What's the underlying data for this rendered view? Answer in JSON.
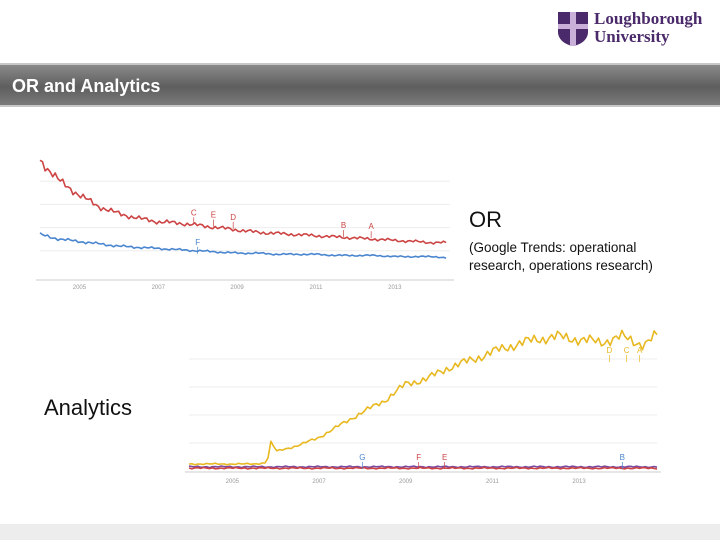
{
  "header": {
    "logo_line1": "Loughborough",
    "logo_line2": "University",
    "slide_title": "OR and Analytics"
  },
  "labels": {
    "or_title": "OR",
    "or_description": "(Google Trends: operational research, operations research)",
    "analytics_title": "Analytics"
  },
  "colors": {
    "red": "#cc4444",
    "blue": "#4a86cf",
    "yellow": "#e8b820",
    "purple": "#7a4aa0",
    "title_bar": "#6e6e6e",
    "logo": "#4a2a6a"
  },
  "chart_data": [
    {
      "type": "line",
      "title": "",
      "x_ticks": [
        "2005",
        "2007",
        "2009",
        "2011",
        "2013"
      ],
      "x": [
        2004.0,
        2004.5,
        2005.0,
        2005.5,
        2006.0,
        2006.5,
        2007.0,
        2007.5,
        2008.0,
        2008.5,
        2009.0,
        2009.5,
        2010.0,
        2010.5,
        2011.0,
        2011.5,
        2012.0,
        2012.5,
        2013.0,
        2013.5,
        2014.0,
        2014.3
      ],
      "xlim": [
        2004.0,
        2014.4
      ],
      "ylim": [
        0,
        100
      ],
      "grid": true,
      "series": [
        {
          "color": "#cc4444",
          "values": [
            98,
            80,
            68,
            58,
            52,
            48,
            45,
            44,
            42,
            40,
            38,
            36,
            35,
            34,
            33,
            32,
            31,
            30,
            29,
            28,
            27,
            27
          ]
        },
        {
          "color": "#4a86cf",
          "values": [
            34,
            30,
            28,
            26,
            24,
            23,
            22,
            21,
            20,
            19,
            18,
            18,
            17,
            17,
            17,
            16,
            16,
            16,
            15,
            15,
            15,
            14
          ]
        }
      ],
      "annotations": [
        {
          "label": "C",
          "x": 2007.9,
          "color": "#cc4444"
        },
        {
          "label": "E",
          "x": 2008.4,
          "color": "#cc4444"
        },
        {
          "label": "D",
          "x": 2008.9,
          "color": "#cc4444"
        },
        {
          "label": "B",
          "x": 2011.7,
          "color": "#cc4444"
        },
        {
          "label": "A",
          "x": 2012.4,
          "color": "#cc4444"
        },
        {
          "label": "F",
          "x": 2008.0,
          "color": "#4a86cf"
        }
      ]
    },
    {
      "type": "line",
      "title": "",
      "x_ticks": [
        "2005",
        "2007",
        "2009",
        "2011",
        "2013"
      ],
      "x": [
        2004.0,
        2004.5,
        2005.0,
        2005.5,
        2005.8,
        2005.9,
        2006.0,
        2006.5,
        2007.0,
        2007.5,
        2008.0,
        2008.5,
        2009.0,
        2009.5,
        2010.0,
        2010.5,
        2011.0,
        2011.5,
        2012.0,
        2012.5,
        2013.0,
        2013.5,
        2014.0,
        2014.5,
        2014.8
      ],
      "xlim": [
        2004.0,
        2014.8
      ],
      "ylim": [
        0,
        100
      ],
      "grid": true,
      "series": [
        {
          "color": "#e8b820",
          "values": [
            5,
            5,
            5,
            5,
            6,
            22,
            14,
            18,
            24,
            33,
            42,
            50,
            62,
            66,
            74,
            79,
            85,
            90,
            94,
            96,
            94,
            92,
            96,
            90,
            97
          ]
        },
        {
          "color": "#7a4aa0",
          "values": [
            3,
            3,
            3,
            3,
            3,
            3,
            3,
            3,
            3,
            3,
            3,
            3,
            3,
            3,
            3,
            3,
            3,
            3,
            3,
            3,
            3,
            3,
            3,
            3,
            3
          ]
        },
        {
          "color": "#cc4444",
          "values": [
            2,
            2,
            2,
            2,
            2,
            2,
            2,
            2,
            2,
            2,
            2,
            2,
            2,
            2,
            2,
            2,
            2,
            2,
            2,
            2,
            2,
            2,
            2,
            2,
            2
          ]
        }
      ],
      "annotations": [
        {
          "label": "G",
          "x": 2008.0,
          "color": "#4a86cf"
        },
        {
          "label": "F",
          "x": 2009.3,
          "color": "#cc4444"
        },
        {
          "label": "E",
          "x": 2009.9,
          "color": "#cc4444"
        },
        {
          "label": "B",
          "x": 2014.0,
          "color": "#4a86cf"
        },
        {
          "label": "D",
          "x": 2013.7,
          "color": "#e8b820"
        },
        {
          "label": "C",
          "x": 2014.1,
          "color": "#e8b820"
        },
        {
          "label": "A",
          "x": 2014.4,
          "color": "#e8b820"
        }
      ]
    }
  ]
}
